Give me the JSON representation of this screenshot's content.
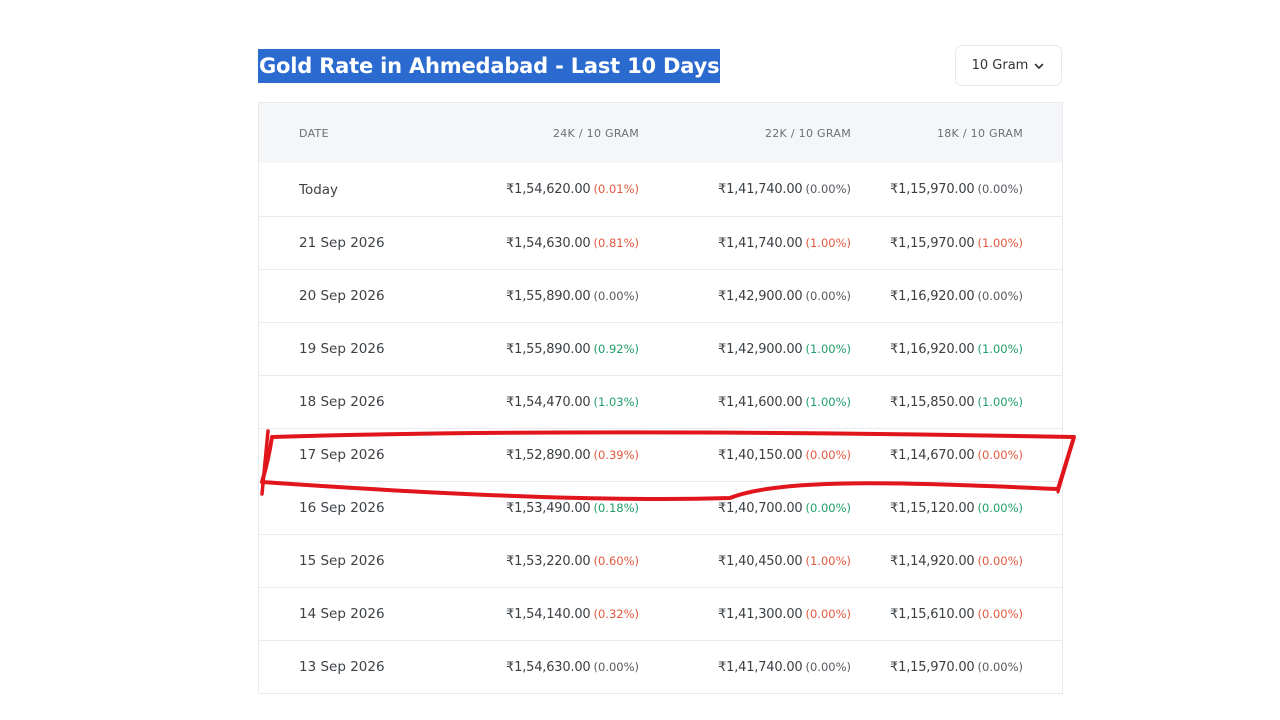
{
  "page": {
    "title": "Gold Rate in Ahmedabad - Last 10 Days",
    "unit_select": {
      "value": "10 Gram",
      "icon": "chevron-down-icon"
    }
  },
  "table": {
    "headers": [
      "DATE",
      "24K / 10 GRAM",
      "22K / 10 GRAM",
      "18K / 10 GRAM"
    ],
    "rows": [
      {
        "date": "Today",
        "k24": {
          "price": "₹1,54,620.00",
          "change": "(0.01%)",
          "trend": "down"
        },
        "k22": {
          "price": "₹1,41,740.00",
          "change": "(0.00%)",
          "trend": "neutral"
        },
        "k18": {
          "price": "₹1,15,970.00",
          "change": "(0.00%)",
          "trend": "neutral"
        }
      },
      {
        "date": "21 Sep 2026",
        "k24": {
          "price": "₹1,54,630.00",
          "change": "(0.81%)",
          "trend": "down"
        },
        "k22": {
          "price": "₹1,41,740.00",
          "change": "(1.00%)",
          "trend": "down"
        },
        "k18": {
          "price": "₹1,15,970.00",
          "change": "(1.00%)",
          "trend": "down"
        }
      },
      {
        "date": "20 Sep 2026",
        "k24": {
          "price": "₹1,55,890.00",
          "change": "(0.00%)",
          "trend": "neutral"
        },
        "k22": {
          "price": "₹1,42,900.00",
          "change": "(0.00%)",
          "trend": "neutral"
        },
        "k18": {
          "price": "₹1,16,920.00",
          "change": "(0.00%)",
          "trend": "neutral"
        }
      },
      {
        "date": "19 Sep 2026",
        "k24": {
          "price": "₹1,55,890.00",
          "change": "(0.92%)",
          "trend": "up"
        },
        "k22": {
          "price": "₹1,42,900.00",
          "change": "(1.00%)",
          "trend": "up"
        },
        "k18": {
          "price": "₹1,16,920.00",
          "change": "(1.00%)",
          "trend": "up"
        }
      },
      {
        "date": "18 Sep 2026",
        "k24": {
          "price": "₹1,54,470.00",
          "change": "(1.03%)",
          "trend": "up"
        },
        "k22": {
          "price": "₹1,41,600.00",
          "change": "(1.00%)",
          "trend": "up"
        },
        "k18": {
          "price": "₹1,15,850.00",
          "change": "(1.00%)",
          "trend": "up"
        }
      },
      {
        "date": "17 Sep 2026",
        "k24": {
          "price": "₹1,52,890.00",
          "change": "(0.39%)",
          "trend": "down"
        },
        "k22": {
          "price": "₹1,40,150.00",
          "change": "(0.00%)",
          "trend": "down"
        },
        "k18": {
          "price": "₹1,14,670.00",
          "change": "(0.00%)",
          "trend": "down"
        }
      },
      {
        "date": "16 Sep 2026",
        "k24": {
          "price": "₹1,53,490.00",
          "change": "(0.18%)",
          "trend": "up"
        },
        "k22": {
          "price": "₹1,40,700.00",
          "change": "(0.00%)",
          "trend": "up"
        },
        "k18": {
          "price": "₹1,15,120.00",
          "change": "(0.00%)",
          "trend": "up"
        }
      },
      {
        "date": "15 Sep 2026",
        "k24": {
          "price": "₹1,53,220.00",
          "change": "(0.60%)",
          "trend": "down"
        },
        "k22": {
          "price": "₹1,40,450.00",
          "change": "(1.00%)",
          "trend": "down"
        },
        "k18": {
          "price": "₹1,14,920.00",
          "change": "(0.00%)",
          "trend": "down"
        }
      },
      {
        "date": "14 Sep 2026",
        "k24": {
          "price": "₹1,54,140.00",
          "change": "(0.32%)",
          "trend": "down"
        },
        "k22": {
          "price": "₹1,41,300.00",
          "change": "(0.00%)",
          "trend": "down"
        },
        "k18": {
          "price": "₹1,15,610.00",
          "change": "(0.00%)",
          "trend": "down"
        }
      },
      {
        "date": "13 Sep 2026",
        "k24": {
          "price": "₹1,54,630.00",
          "change": "(0.00%)",
          "trend": "neutral"
        },
        "k22": {
          "price": "₹1,41,740.00",
          "change": "(0.00%)",
          "trend": "neutral"
        },
        "k18": {
          "price": "₹1,15,970.00",
          "change": "(0.00%)",
          "trend": "neutral"
        }
      }
    ]
  },
  "colors": {
    "title_highlight": "#2b6bd0",
    "up": "#1e9e6a",
    "down": "#e2583e",
    "neutral": "#555a5f",
    "annotation": "#e0161c"
  },
  "annotation": {
    "type": "hand-drawn-outline",
    "target_row": "17 Sep 2026"
  }
}
